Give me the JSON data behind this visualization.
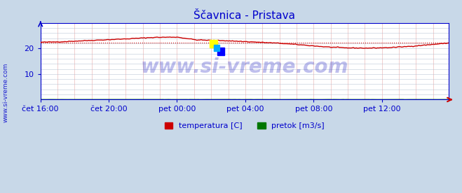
{
  "title": "Ščavnica - Pristava",
  "title_color": "#0000cc",
  "fig_bg_color": "#c8d8e8",
  "plot_bg_color": "#ffffff",
  "line_color_temp": "#cc0000",
  "line_color_pretok": "#007700",
  "avg_line_color": "#cc0000",
  "watermark": "www.si-vreme.com",
  "watermark_color": "#0000bb",
  "watermark_alpha": 0.25,
  "side_label": "www.si-vreme.com",
  "side_label_color": "#0000cc",
  "tick_color": "#0000cc",
  "grid_color_v": "#dd8888",
  "grid_color_h": "#aabbcc",
  "spine_color": "#0000cc",
  "xlim": [
    0,
    287
  ],
  "ylim": [
    0,
    30
  ],
  "yticks": [
    10,
    20
  ],
  "xtick_labels": [
    "čet 16:00",
    "čet 20:00",
    "pet 00:00",
    "pet 04:00",
    "pet 08:00",
    "pet 12:00"
  ],
  "xtick_positions": [
    0,
    48,
    96,
    144,
    192,
    240
  ],
  "avg_temp": 22.1,
  "legend_labels": [
    "temperatura [C]",
    "pretok [m3/s]"
  ],
  "legend_colors": [
    "#cc0000",
    "#007700"
  ],
  "figsize": [
    6.59,
    2.76
  ],
  "dpi": 100,
  "temp_keypoints_x": [
    0,
    15,
    35,
    60,
    80,
    96,
    110,
    130,
    150,
    168,
    185,
    200,
    215,
    230,
    245,
    260,
    275,
    287
  ],
  "temp_keypoints_y": [
    22.4,
    22.6,
    23.1,
    23.7,
    24.3,
    24.4,
    23.3,
    23.0,
    22.5,
    22.0,
    21.3,
    20.6,
    20.2,
    20.1,
    20.3,
    20.8,
    21.5,
    22.1
  ]
}
